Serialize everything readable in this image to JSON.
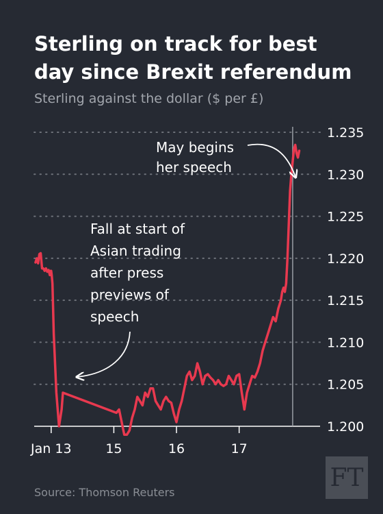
{
  "header": {
    "title": "Sterling on track for best day since Brexit referendum",
    "subtitle": "Sterling against the dollar ($ per £)"
  },
  "footer": {
    "source": "Source: Thomson Reuters",
    "logo": "FT"
  },
  "colors": {
    "background": "#262a33",
    "series": "#e8394f",
    "grid": "#6e727a",
    "text": "#ffffff",
    "muted": "#a2a6ad"
  },
  "chart_data": {
    "type": "line",
    "title": "Sterling on track for best day since Brexit referendum",
    "subtitle": "Sterling against the dollar ($ per £)",
    "x_axis": {
      "unit": "hours since Jan 13 00:00",
      "range": [
        -6.5,
        103
      ],
      "ticks": [
        {
          "x": 0,
          "label": "Jan 13"
        },
        {
          "x": 24,
          "label": "15"
        },
        {
          "x": 48,
          "label": "16"
        },
        {
          "x": 72,
          "label": "17"
        }
      ]
    },
    "y_axis": {
      "range": [
        1.2,
        1.235
      ],
      "ticks": [
        1.2,
        1.205,
        1.21,
        1.215,
        1.22,
        1.225,
        1.23,
        1.235
      ],
      "tick_labels": [
        "1.200",
        "1.205",
        "1.210",
        "1.215",
        "1.220",
        "1.225",
        "1.230",
        "1.235"
      ],
      "position": "right"
    },
    "grid": "dotted-horizontal",
    "series": [
      {
        "name": "",
        "x": [
          -6,
          -5.5,
          -5,
          -4.5,
          -4,
          -3.5,
          -3,
          -2.5,
          -2,
          -1.5,
          -1,
          -0.5,
          -0.2,
          0,
          0.2,
          0.5,
          1,
          2,
          3,
          4,
          4.5,
          25,
          26,
          27,
          28,
          29,
          30,
          31,
          32,
          33,
          34,
          35,
          36,
          37,
          38,
          39,
          40,
          41,
          42,
          43,
          44,
          45,
          46,
          47,
          48,
          49,
          50,
          51,
          52,
          53,
          54,
          55,
          56,
          57,
          58,
          59,
          60,
          61,
          62,
          63,
          64,
          65,
          66,
          67,
          68,
          69,
          70,
          71,
          72,
          73,
          74,
          75,
          76,
          77,
          78,
          79,
          80,
          81,
          82,
          83,
          84,
          85,
          86,
          87,
          88,
          88.5,
          89,
          89.5,
          90,
          90.5,
          91,
          91.5,
          92,
          92.5,
          93,
          93.5,
          94,
          94.5,
          95
        ],
        "values": [
          1.2195,
          1.22,
          1.2194,
          1.2205,
          1.2206,
          1.2188,
          1.2188,
          1.2185,
          1.2188,
          1.2184,
          1.2186,
          1.218,
          1.2185,
          1.2185,
          1.218,
          1.217,
          1.211,
          1.204,
          1.2,
          1.202,
          1.204,
          1.2016,
          1.202,
          1.2005,
          1.199,
          1.199,
          1.1995,
          1.201,
          1.202,
          1.2035,
          1.203,
          1.2025,
          1.204,
          1.2035,
          1.2045,
          1.2045,
          1.203,
          1.2025,
          1.202,
          1.203,
          1.2035,
          1.203,
          1.2028,
          1.2015,
          1.2005,
          1.202,
          1.203,
          1.2045,
          1.206,
          1.2065,
          1.2055,
          1.206,
          1.2075,
          1.2065,
          1.205,
          1.206,
          1.2062,
          1.2058,
          1.2055,
          1.205,
          1.2055,
          1.205,
          1.2048,
          1.205,
          1.206,
          1.2055,
          1.205,
          1.206,
          1.2062,
          1.204,
          1.202,
          1.204,
          1.205,
          1.206,
          1.2058,
          1.2065,
          1.2075,
          1.209,
          1.21,
          1.211,
          1.212,
          1.213,
          1.2125,
          1.214,
          1.215,
          1.216,
          1.2165,
          1.216,
          1.217,
          1.22,
          1.224,
          1.228,
          1.23,
          1.2315,
          1.233,
          1.2335,
          1.2325,
          1.232,
          1.2328
        ]
      }
    ],
    "annotations": [
      {
        "text": "May begins her speech",
        "lines": [
          "May begins",
          "her speech"
        ],
        "x": 92.5,
        "y": 1.2296
      },
      {
        "text": "Fall at start of Asian trading after press previews of speech",
        "lines": [
          "Fall at start of",
          "Asian trading",
          "after press",
          "previews of",
          "speech"
        ],
        "x": 0.5,
        "y": 1.2055
      }
    ],
    "reference_line": {
      "x": 92.5,
      "label": "May begins her speech"
    }
  }
}
